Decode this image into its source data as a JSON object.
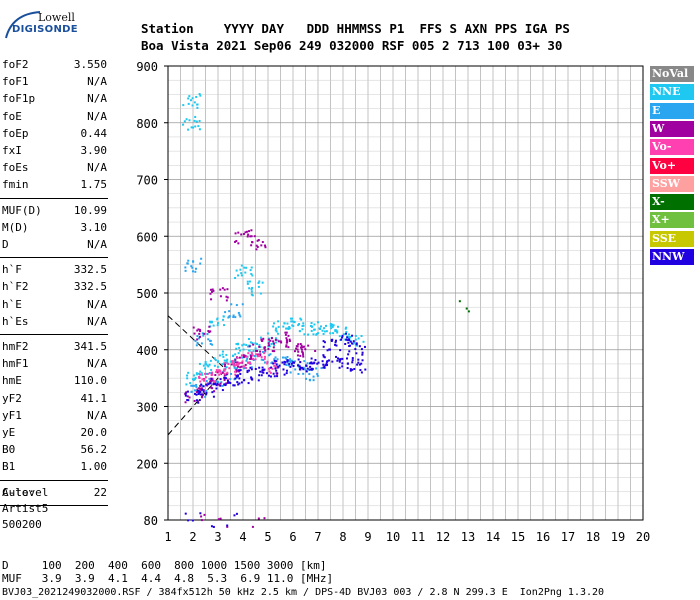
{
  "logo": {
    "line1": "Lowell",
    "line2": "DIGISONDE"
  },
  "header": {
    "row1": "Station    YYYY DAY   DDD HHMMSS P1  FFS S AXN PPS IGA PS",
    "row2": "Boa Vista 2021 Sep06 249 032000 RSF 005 2 713 100 03+ 30"
  },
  "params": [
    {
      "name": "foF2",
      "value": "3.550"
    },
    {
      "name": "foF1",
      "value": "N/A"
    },
    {
      "name": "foF1p",
      "value": "N/A"
    },
    {
      "name": "foE",
      "value": "N/A"
    },
    {
      "name": "foEp",
      "value": "0.44"
    },
    {
      "name": "fxI",
      "value": "3.90"
    },
    {
      "name": "foEs",
      "value": "N/A"
    },
    {
      "name": "fmin",
      "value": "1.75"
    },
    {
      "name": "MUF(D)",
      "value": "10.99"
    },
    {
      "name": "M(D)",
      "value": "3.10"
    },
    {
      "name": "D",
      "value": "N/A"
    },
    {
      "name": "h`F",
      "value": "332.5"
    },
    {
      "name": "h`F2",
      "value": "332.5"
    },
    {
      "name": "h`E",
      "value": "N/A"
    },
    {
      "name": "h`Es",
      "value": "N/A"
    },
    {
      "name": "hmF2",
      "value": "341.5"
    },
    {
      "name": "hmF1",
      "value": "N/A"
    },
    {
      "name": "hmE",
      "value": "110.0"
    },
    {
      "name": "yF2",
      "value": "41.1"
    },
    {
      "name": "yF1",
      "value": "N/A"
    },
    {
      "name": "yE",
      "value": "20.0"
    },
    {
      "name": "B0",
      "value": "56.2"
    },
    {
      "name": "B1",
      "value": "1.00"
    },
    {
      "name": "C-level",
      "value": "22"
    }
  ],
  "auto": {
    "line1": "Auto:",
    "line2": "Artist5",
    "line3": "500200"
  },
  "legend": [
    {
      "label": "NoVal",
      "color": "#888888"
    },
    {
      "label": "NNE",
      "color": "#1ec8f0"
    },
    {
      "label": "E",
      "color": "#2aa5f0"
    },
    {
      "label": "W",
      "color": "#a000a0"
    },
    {
      "label": "Vo-",
      "color": "#ff40b0"
    },
    {
      "label": "Vo+",
      "color": "#ff0040"
    },
    {
      "label": "SSW",
      "color": "#ffa0a0"
    },
    {
      "label": "X-",
      "color": "#007000"
    },
    {
      "label": "X+",
      "color": "#70c040"
    },
    {
      "label": "SSE",
      "color": "#c8c800"
    },
    {
      "label": "NNW",
      "color": "#2000e0"
    }
  ],
  "footer": {
    "row1": "D     100  200  400  600  800 1000 1500 3000 [km]",
    "row2": "MUF   3.9  3.9  4.1  4.4  4.8  5.3  6.9 11.0 [MHz]",
    "row3": "BVJ03_2021249032000.RSF / 384fx512h 50 kHz 2.5 km / DPS-4D BVJ03 003 / 2.8 N 299.3 E  Ion2Png 1.3.20"
  },
  "chart_data": {
    "type": "scatter",
    "xlim": [
      1,
      20
    ],
    "ylim": [
      80,
      900
    ],
    "xticks": [
      1,
      2,
      3,
      4,
      5,
      6,
      7,
      8,
      9,
      10,
      11,
      12,
      13,
      14,
      15,
      16,
      17,
      18,
      19,
      20
    ],
    "yticks": [
      80,
      200,
      300,
      400,
      500,
      600,
      700,
      800,
      900
    ],
    "grid": true,
    "legend_position": "right",
    "series": [
      {
        "name": "NNE",
        "color": "#1ec8f0",
        "points": [
          [
            2.0,
            350
          ],
          [
            2.5,
            370
          ],
          [
            3.0,
            380
          ],
          [
            3.5,
            390
          ],
          [
            4.0,
            400
          ],
          [
            4.5,
            410
          ],
          [
            5.0,
            420
          ],
          [
            5.5,
            440
          ],
          [
            6.0,
            445
          ],
          [
            6.5,
            440
          ],
          [
            7.0,
            440
          ],
          [
            7.5,
            435
          ],
          [
            8.0,
            430
          ],
          [
            8.5,
            420
          ],
          [
            3.0,
            450
          ],
          [
            4.0,
            540
          ],
          [
            4.5,
            510
          ],
          [
            1.9,
            800
          ],
          [
            1.9,
            840
          ]
        ]
      },
      {
        "name": "E",
        "color": "#2aa5f0",
        "points": [
          [
            2.2,
            330
          ],
          [
            2.8,
            350
          ],
          [
            3.5,
            360
          ],
          [
            4.2,
            380
          ],
          [
            5.0,
            390
          ],
          [
            5.6,
            380
          ],
          [
            6.2,
            370
          ],
          [
            6.8,
            360
          ],
          [
            1.95,
            550
          ],
          [
            2.4,
            420
          ],
          [
            3.6,
            470
          ]
        ]
      },
      {
        "name": "W",
        "color": "#a000a0",
        "points": [
          [
            2.0,
            320
          ],
          [
            2.5,
            340
          ],
          [
            3.0,
            350
          ],
          [
            3.5,
            370
          ],
          [
            4.0,
            380
          ],
          [
            4.5,
            400
          ],
          [
            5.0,
            410
          ],
          [
            5.5,
            420
          ],
          [
            6.0,
            410
          ],
          [
            6.5,
            400
          ],
          [
            3.0,
            500
          ],
          [
            4.0,
            600
          ],
          [
            4.6,
            590
          ],
          [
            2.3,
            430
          ],
          [
            2.2,
            82
          ],
          [
            3.1,
            82
          ],
          [
            4.6,
            82
          ]
        ]
      },
      {
        "name": "Vo-",
        "color": "#ff40b0",
        "points": [
          [
            2.5,
            350
          ],
          [
            3.0,
            360
          ],
          [
            3.5,
            370
          ],
          [
            4.0,
            380
          ],
          [
            4.5,
            385
          ],
          [
            5.0,
            370
          ]
        ]
      },
      {
        "name": "X-",
        "color": "#007000",
        "points": [
          [
            12.8,
            475
          ]
        ]
      },
      {
        "name": "NNW",
        "color": "#2000e0",
        "points": [
          [
            2.0,
            320
          ],
          [
            2.5,
            330
          ],
          [
            3.0,
            340
          ],
          [
            3.5,
            350
          ],
          [
            4.0,
            355
          ],
          [
            4.5,
            360
          ],
          [
            5.0,
            365
          ],
          [
            5.5,
            370
          ],
          [
            6.0,
            372
          ],
          [
            6.5,
            375
          ],
          [
            7.0,
            378
          ],
          [
            7.5,
            380
          ],
          [
            8.0,
            375
          ],
          [
            8.5,
            372
          ],
          [
            7.5,
            410
          ],
          [
            8.0,
            420
          ],
          [
            8.5,
            405
          ],
          [
            2.0,
            82
          ],
          [
            2.5,
            82
          ],
          [
            3.5,
            82
          ]
        ]
      }
    ],
    "dashed_lines": [
      [
        [
          1.0,
          460
        ],
        [
          3.2,
          370
        ]
      ],
      [
        [
          1.0,
          250
        ],
        [
          3.2,
          360
        ]
      ]
    ]
  }
}
